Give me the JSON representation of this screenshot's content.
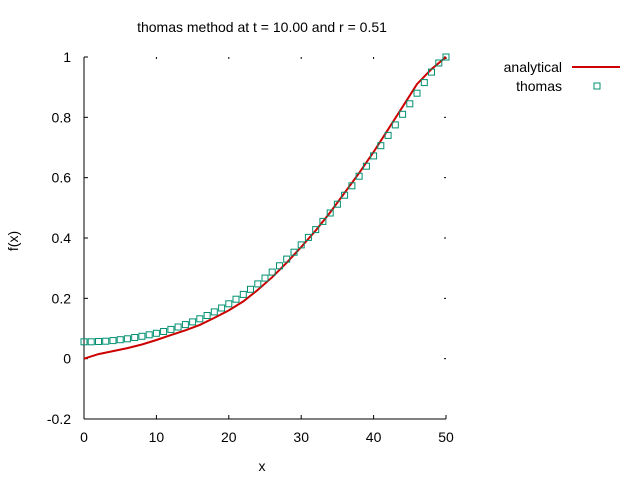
{
  "chart_data": {
    "type": "line",
    "title": "thomas method at t = 10.00 and r = 0.51",
    "xlabel": "x",
    "ylabel": "f(x)",
    "xlim": [
      0,
      50
    ],
    "ylim": [
      -0.2,
      1
    ],
    "xticks": [
      0,
      10,
      20,
      30,
      40,
      50
    ],
    "xtick_labels": [
      "0",
      "10",
      "20",
      "30",
      "40",
      "50"
    ],
    "yticks": [
      -0.2,
      0,
      0.2,
      0.4,
      0.6,
      0.8,
      1
    ],
    "ytick_labels": [
      "-0.2",
      "0",
      "0.2",
      "0.4",
      "0.6",
      "0.8",
      "1"
    ],
    "grid": false,
    "legend": "top-right, outside plot",
    "series": [
      {
        "name": "analytical",
        "style": "line",
        "color": "#cc0000",
        "x": [
          0,
          2,
          4,
          6,
          8,
          10,
          12,
          14,
          16,
          18,
          20,
          22,
          24,
          26,
          28,
          30,
          32,
          34,
          36,
          38,
          40,
          42,
          44,
          46,
          48,
          50
        ],
        "y": [
          0,
          0.015,
          0.025,
          0.035,
          0.047,
          0.062,
          0.078,
          0.094,
          0.112,
          0.135,
          0.16,
          0.19,
          0.228,
          0.27,
          0.318,
          0.37,
          0.425,
          0.485,
          0.55,
          0.615,
          0.685,
          0.76,
          0.835,
          0.91,
          0.96,
          1.0
        ]
      },
      {
        "name": "thomas",
        "style": "markers",
        "marker": "square",
        "color": "#009070",
        "x": [
          0,
          1,
          2,
          3,
          4,
          5,
          6,
          7,
          8,
          9,
          10,
          11,
          12,
          13,
          14,
          15,
          16,
          17,
          18,
          19,
          20,
          21,
          22,
          23,
          24,
          25,
          26,
          27,
          28,
          29,
          30,
          31,
          32,
          33,
          34,
          35,
          36,
          37,
          38,
          39,
          40,
          41,
          42,
          43,
          44,
          45,
          46,
          47,
          48,
          49,
          50
        ],
        "y": [
          0.056,
          0.056,
          0.057,
          0.058,
          0.06,
          0.063,
          0.066,
          0.07,
          0.074,
          0.079,
          0.084,
          0.09,
          0.097,
          0.105,
          0.113,
          0.122,
          0.132,
          0.143,
          0.155,
          0.168,
          0.182,
          0.197,
          0.213,
          0.23,
          0.248,
          0.267,
          0.287,
          0.308,
          0.33,
          0.353,
          0.377,
          0.402,
          0.428,
          0.455,
          0.483,
          0.512,
          0.542,
          0.573,
          0.605,
          0.638,
          0.672,
          0.706,
          0.74,
          0.775,
          0.81,
          0.845,
          0.88,
          0.915,
          0.95,
          0.98,
          1.0
        ]
      }
    ]
  }
}
